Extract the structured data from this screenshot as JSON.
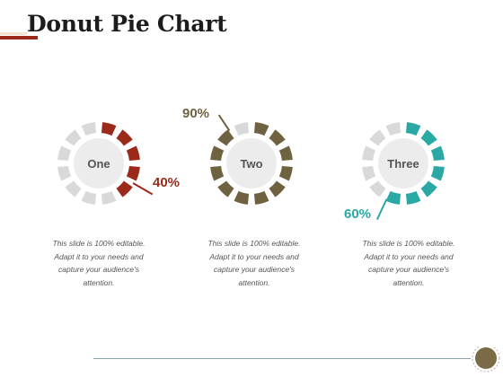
{
  "slide": {
    "title": "Donut Pie Chart",
    "caption_lines": [
      "This slide is 100% editable.",
      "Adapt it to your needs and",
      "capture your audience's",
      "attention."
    ]
  },
  "colors": {
    "empty_segment": "#d9d9d9",
    "hub": "#ececec",
    "hub_text": "#555555",
    "title_accent": "#9c2a1b",
    "footer_badge": "#7a6a45"
  },
  "chart_data": [
    {
      "type": "pie",
      "style": "segmented-donut",
      "label": "One",
      "value": 40,
      "value_label": "40%",
      "color": "#9c2a1b"
    },
    {
      "type": "pie",
      "style": "segmented-donut",
      "label": "Two",
      "value": 90,
      "value_label": "90%",
      "color": "#6f6240"
    },
    {
      "type": "pie",
      "style": "segmented-donut",
      "label": "Three",
      "value": 60,
      "value_label": "60%",
      "color": "#2aa9a4"
    }
  ]
}
